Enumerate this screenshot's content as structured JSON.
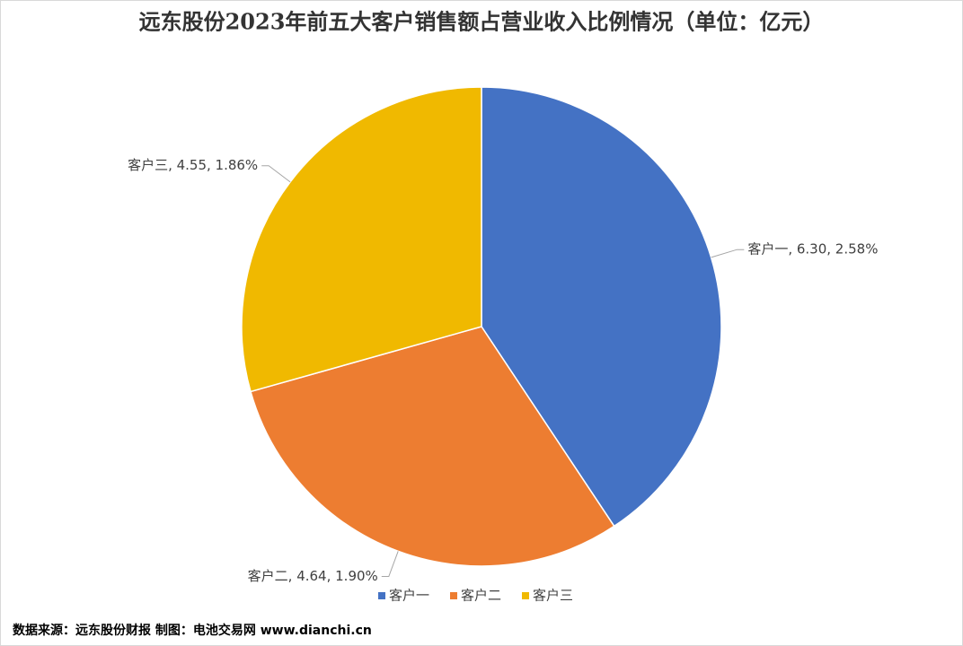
{
  "chart_data": {
    "type": "pie",
    "title": "远东股份2023年前五大客户销售额占营业收入比例情况（单位：亿元）",
    "categories": [
      "客户一",
      "客户二",
      "客户三"
    ],
    "values": [
      6.3,
      4.64,
      4.55
    ],
    "value_labels": [
      "客户一, 6.30, 2.58%",
      "客户二, 4.64, 1.90%",
      "客户三, 4.55, 1.86%"
    ],
    "colors": [
      "#4472c4",
      "#ed7d31",
      "#f0b900"
    ],
    "legend": "bottom",
    "source": "数据来源：远东股份财报  制图：电池交易网 www.dianchi.cn"
  }
}
